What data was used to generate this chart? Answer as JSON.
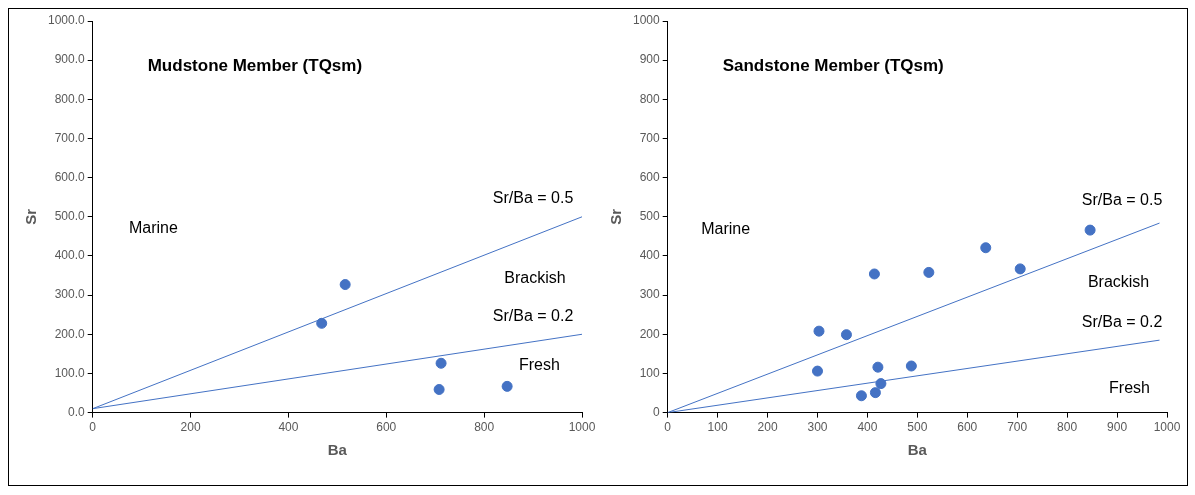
{
  "chart_data": [
    {
      "type": "scatter",
      "title": "Mudstone Member (TQsm)",
      "xlabel": "Ba",
      "ylabel": "Sr",
      "xlim": [
        0,
        1000
      ],
      "xticks": [
        0,
        200,
        400,
        600,
        800,
        1000
      ],
      "ylim": [
        0,
        1000
      ],
      "yticks": [
        {
          "value": 0,
          "label": "0.0"
        },
        {
          "value": 100,
          "label": "100.0"
        },
        {
          "value": 200,
          "label": "200.0"
        },
        {
          "value": 300,
          "label": "300.0"
        },
        {
          "value": 400,
          "label": "400.0"
        },
        {
          "value": 500,
          "label": "500.0"
        },
        {
          "value": 600,
          "label": "600.0"
        },
        {
          "value": 700,
          "label": "700.0"
        },
        {
          "value": 800,
          "label": "800.0"
        },
        {
          "value": 900,
          "label": "900.0"
        },
        {
          "value": 1000,
          "label": "1000.0"
        }
      ],
      "grid": false,
      "legend": false,
      "marker": "circle",
      "series": [
        {
          "color": "#4472c4",
          "x": [
            468,
            516,
            712,
            708,
            847
          ],
          "values": [
            228,
            327,
            126,
            59,
            67
          ]
        },
        {
          "type": "line",
          "color": "#4472c4",
          "marker": "none",
          "x": [
            0,
            1000
          ],
          "values": [
            10,
            500
          ]
        },
        {
          "type": "line",
          "color": "#4472c4",
          "marker": "none",
          "x": [
            0,
            1000
          ],
          "values": [
            10,
            200
          ]
        }
      ],
      "annotations": [
        "Marine",
        "Sr/Ba = 0.5",
        "Brackish",
        "Sr/Ba = 0.2",
        "Fresh"
      ]
    },
    {
      "type": "scatter",
      "title": "Sandstone Member (TQsm)",
      "xlabel": "Ba",
      "ylabel": "Sr",
      "xlim": [
        0,
        1000
      ],
      "xticks": [
        0,
        100,
        200,
        300,
        400,
        500,
        600,
        700,
        800,
        900,
        1000
      ],
      "ylim": [
        0,
        1000
      ],
      "yticks": [
        0,
        100,
        200,
        300,
        400,
        500,
        600,
        700,
        800,
        900,
        1000
      ],
      "grid": false,
      "legend": false,
      "marker": "circle",
      "series": [
        {
          "color": "#4472c4",
          "x": [
            846,
            637,
            706,
            523,
            414,
            303,
            358,
            300,
            421,
            488,
            427,
            416,
            388
          ],
          "values": [
            466,
            421,
            367,
            358,
            354,
            208,
            199,
            106,
            116,
            119,
            74,
            51,
            43
          ]
        },
        {
          "type": "line",
          "color": "#4472c4",
          "marker": "none",
          "x": [
            0,
            985
          ],
          "values": [
            0,
            484
          ]
        },
        {
          "type": "line",
          "color": "#4472c4",
          "marker": "none",
          "x": [
            0,
            985
          ],
          "values": [
            0,
            185
          ]
        }
      ],
      "annotations": [
        "Marine",
        "Sr/Ba = 0.5",
        "Brackish",
        "Sr/Ba = 0.2",
        "Fresh"
      ]
    }
  ]
}
